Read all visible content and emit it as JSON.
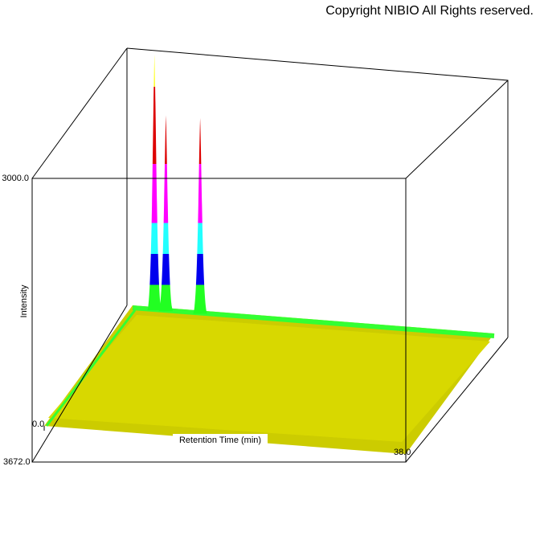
{
  "chart_data": {
    "type": "surface3d",
    "copyright": "Copyright NIBIO All Rights reserved.",
    "x_label": "Retention Time (min)",
    "z_label": "Intensity",
    "xlim": [
      0,
      38
    ],
    "xticks": [
      {
        "value": 0,
        "label": "0.0"
      },
      {
        "value": 38,
        "label": "38.0"
      }
    ],
    "zlim": [
      0,
      3000
    ],
    "zticks": [
      {
        "value": 3000,
        "label": "3000.0"
      }
    ],
    "depth_label": "3672.0",
    "peaks": {
      "x": [
        2.3,
        3.5,
        7.1
      ],
      "values": [
        3080,
        2350,
        2350
      ]
    }
  }
}
